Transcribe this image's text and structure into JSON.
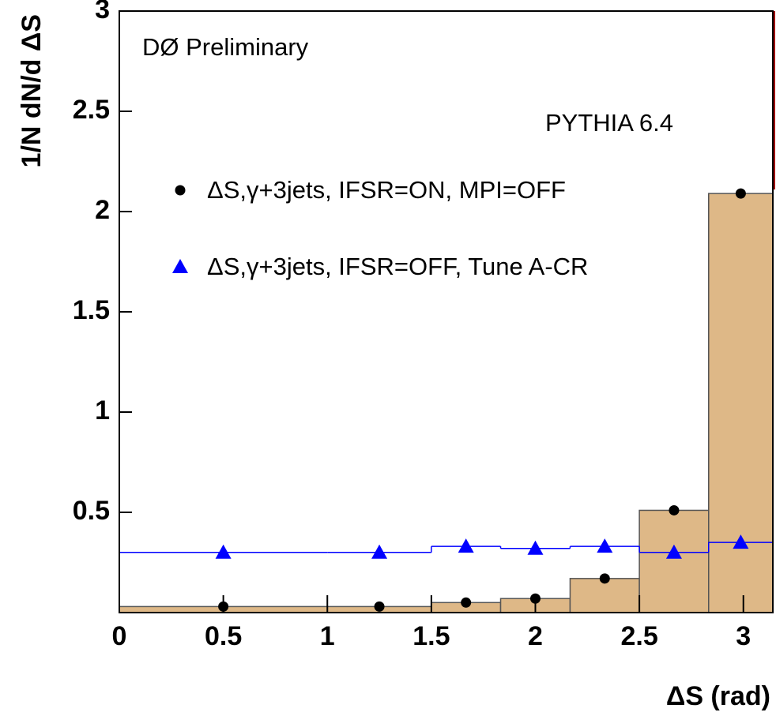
{
  "chart_data": {
    "type": "histogram",
    "annotations": [
      "DØ Preliminary",
      "PYTHIA 6.4"
    ],
    "x_label": "ΔS (rad)",
    "y_label": "1/N dN/d ΔS",
    "bins": [
      0,
      1,
      1.5,
      1.833,
      2.167,
      2.5,
      2.833,
      3.1416
    ],
    "series": [
      {
        "name": "ΔS,γ+3jets, IFSR=ON, MPI=OFF",
        "color": "#000000",
        "fill": "#deb887",
        "marker": "circle",
        "values": [
          0.03,
          0.03,
          0.05,
          0.07,
          0.17,
          0.51,
          2.09
        ]
      },
      {
        "name": "ΔS,γ+3jets, IFSR=OFF, Tune A-CR",
        "color": "#0000ff",
        "marker": "triangle",
        "values": [
          0.3,
          0.3,
          0.33,
          0.32,
          0.33,
          0.3,
          0.35
        ]
      }
    ],
    "xlim": [
      0,
      3.1416
    ],
    "ylim": [
      0,
      3
    ],
    "xticks": [
      0,
      0.5,
      1,
      1.5,
      2,
      2.5,
      3
    ],
    "yticks": [
      0.5,
      1,
      1.5,
      2,
      2.5,
      3
    ]
  }
}
